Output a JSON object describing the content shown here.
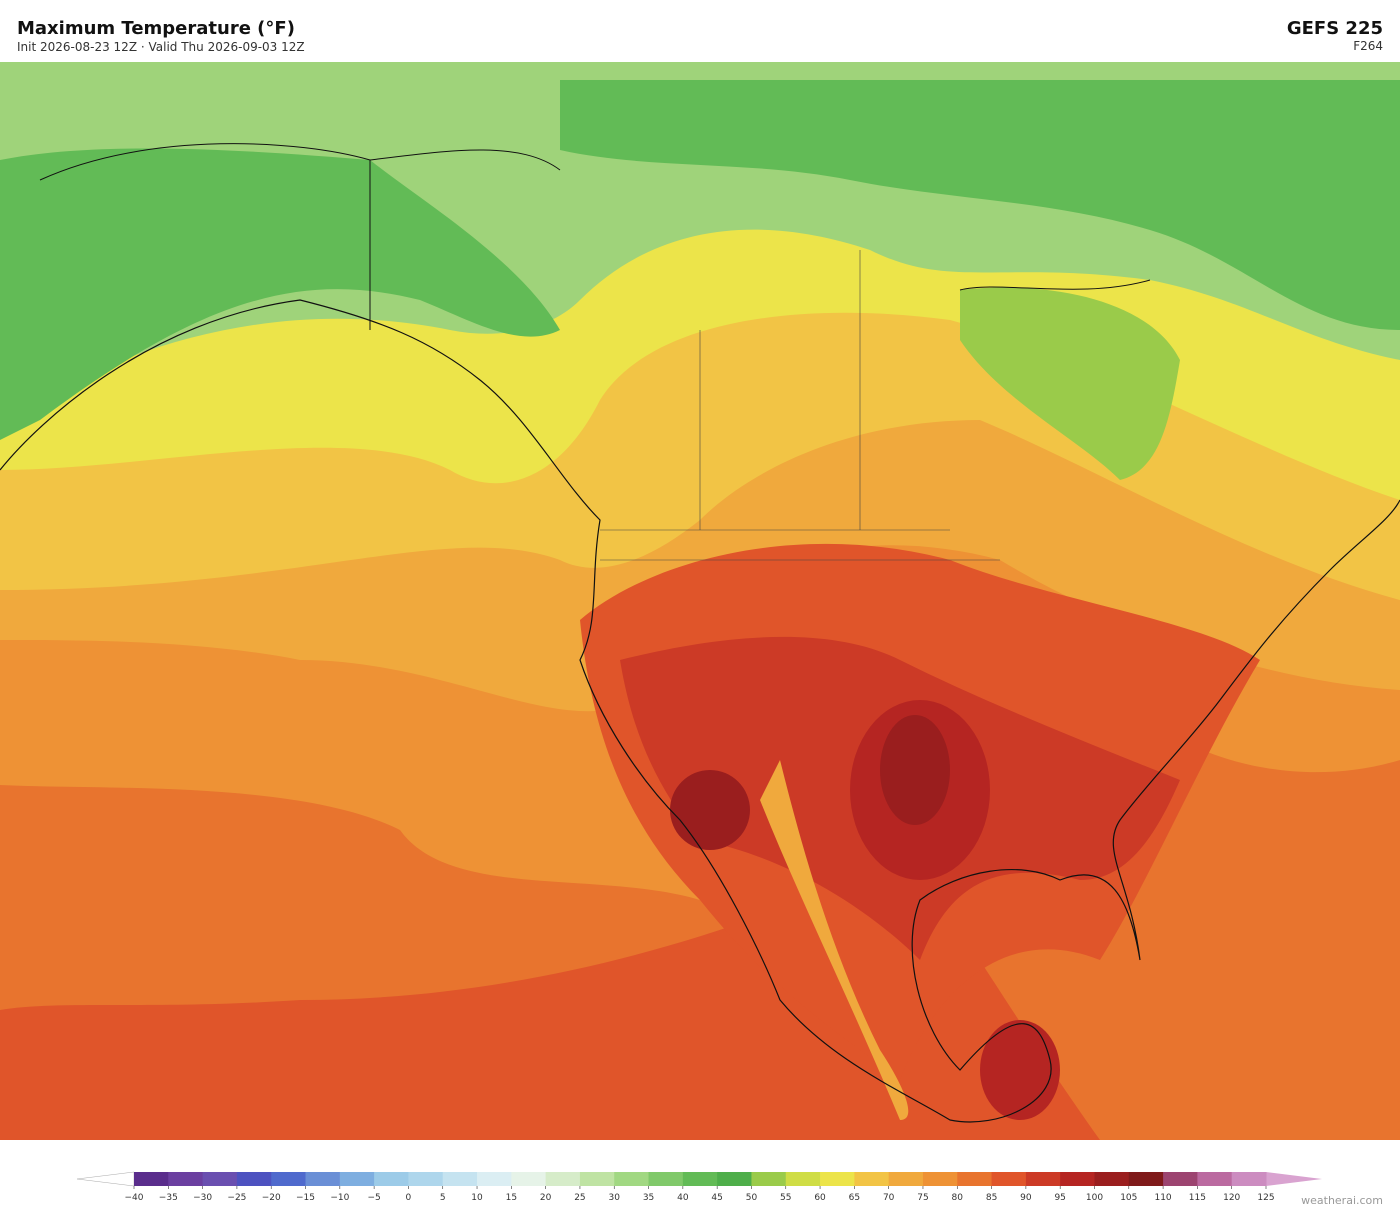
{
  "header": {
    "title": "Maximum Temperature  (°F)",
    "subtitle": "Init 2026-08-23 12Z  ·  Valid Thu 2026-09-03 12Z",
    "model": "GEFS  225",
    "forecast_hour": "F264"
  },
  "colorbar": {
    "ticks": [
      {
        "value": -40,
        "label": "−40"
      },
      {
        "value": -35,
        "label": "−35"
      },
      {
        "value": -30,
        "label": "−30"
      },
      {
        "value": -25,
        "label": "−25"
      },
      {
        "value": -20,
        "label": "−20"
      },
      {
        "value": -15,
        "label": "−15"
      },
      {
        "value": -10,
        "label": "−10"
      },
      {
        "value": -5,
        "label": "−5"
      },
      0,
      5,
      10,
      15,
      20,
      25,
      30,
      35,
      40,
      45,
      50,
      55,
      60,
      65,
      70,
      75,
      80,
      85,
      90,
      95,
      100,
      105,
      110,
      115,
      120,
      125
    ],
    "colors": [
      "#5a2d8c",
      "#6b3fa0",
      "#6a4fb0",
      "#4d52c0",
      "#4f6acd",
      "#6a8fd6",
      "#7eaee0",
      "#9ccbe8",
      "#aed6ec",
      "#c5e3f0",
      "#dbeef3",
      "#e6f3e8",
      "#d6ecc9",
      "#bfe3a3",
      "#a1d882",
      "#80c96a",
      "#62bb56",
      "#4eae4a",
      "#9acb4a",
      "#cfdd45",
      "#ece44a",
      "#f2c445",
      "#f0a93d",
      "#ee9235",
      "#e8742e",
      "#e0552a",
      "#cc3a26",
      "#b52522",
      "#9a1e1e",
      "#7f1a1a",
      "#9c4470",
      "#bb6aa0",
      "#cc8cc0"
    ],
    "under_color": "#ffffff",
    "over_color": "#d9a3d0"
  },
  "footer": {
    "credit": "weatherai.com"
  }
}
